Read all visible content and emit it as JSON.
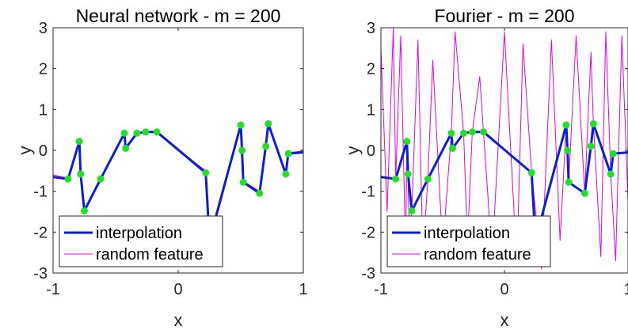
{
  "chart_data": [
    {
      "type": "line",
      "title": "Neural network - m = 200",
      "xlabel": "x",
      "ylabel": "y",
      "xlim": [
        -1,
        1
      ],
      "ylim": [
        -3,
        3
      ],
      "xticks": [
        "-1",
        "0",
        "1"
      ],
      "yticks": [
        "-3",
        "-2",
        "-1",
        "0",
        "1",
        "2",
        "3"
      ],
      "grid": false,
      "legend_position": "bottom-left",
      "series": [
        {
          "name": "interpolation",
          "color": "#0a1fd1",
          "x": [
            -1.0,
            -0.88,
            -0.79,
            -0.78,
            -0.75,
            -0.62,
            -0.43,
            -0.42,
            -0.33,
            -0.26,
            -0.17,
            0.22,
            0.25,
            0.5,
            0.51,
            0.52,
            0.65,
            0.7,
            0.72,
            0.86,
            0.88,
            1.0
          ],
          "y": [
            -0.65,
            -0.7,
            0.22,
            -0.58,
            -1.48,
            -0.7,
            0.42,
            0.05,
            0.42,
            0.45,
            0.45,
            -0.55,
            -2.2,
            0.62,
            0.0,
            -0.78,
            -1.05,
            0.1,
            0.65,
            -0.58,
            -0.08,
            -0.05
          ]
        },
        {
          "name": "random feature",
          "color": "#e600e6",
          "x": [
            -1.0,
            -0.88,
            -0.79,
            -0.78,
            -0.75,
            -0.62,
            -0.43,
            -0.42,
            -0.33,
            -0.26,
            -0.17,
            0.22,
            0.25,
            0.5,
            0.51,
            0.52,
            0.65,
            0.7,
            0.72,
            0.86,
            0.88,
            1.0
          ],
          "y": [
            -0.6,
            -0.68,
            0.2,
            -0.55,
            -1.45,
            -0.68,
            0.42,
            0.1,
            0.4,
            0.45,
            0.42,
            -0.5,
            -2.3,
            0.58,
            0.02,
            -0.75,
            -1.0,
            0.12,
            0.6,
            -0.55,
            -0.05,
            -0.02
          ]
        }
      ],
      "points": {
        "color": "#22e02a",
        "x": [
          -0.88,
          -0.79,
          -0.78,
          -0.75,
          -0.62,
          -0.43,
          -0.42,
          -0.33,
          -0.26,
          -0.17,
          0.22,
          0.5,
          0.51,
          0.52,
          0.65,
          0.7,
          0.72,
          0.86,
          0.88
        ],
        "y": [
          -0.7,
          0.22,
          -0.58,
          -1.48,
          -0.7,
          0.42,
          0.05,
          0.42,
          0.45,
          0.45,
          -0.55,
          0.62,
          0.0,
          -0.78,
          -1.05,
          0.1,
          0.65,
          -0.58,
          -0.08
        ]
      }
    },
    {
      "type": "line",
      "title": "Fourier - m = 200",
      "xlabel": "x",
      "ylabel": "y",
      "xlim": [
        -1,
        1
      ],
      "ylim": [
        -3,
        3
      ],
      "xticks": [
        "-1",
        "0",
        "1"
      ],
      "yticks": [
        "-3",
        "-2",
        "-1",
        "0",
        "1",
        "2",
        "3"
      ],
      "grid": false,
      "legend_position": "bottom-left",
      "series": [
        {
          "name": "interpolation",
          "color": "#0a1fd1",
          "x": [
            -1.0,
            -0.88,
            -0.79,
            -0.78,
            -0.75,
            -0.62,
            -0.43,
            -0.42,
            -0.33,
            -0.26,
            -0.17,
            0.22,
            0.25,
            0.5,
            0.51,
            0.52,
            0.65,
            0.7,
            0.72,
            0.86,
            0.88,
            1.0
          ],
          "y": [
            -0.65,
            -0.7,
            0.22,
            -0.58,
            -1.48,
            -0.7,
            0.42,
            0.05,
            0.42,
            0.45,
            0.45,
            -0.55,
            -2.2,
            0.62,
            0.0,
            -0.78,
            -1.05,
            0.1,
            0.65,
            -0.58,
            -0.08,
            -0.05
          ]
        },
        {
          "name": "random feature",
          "color": "#e600e6",
          "x": [
            -1.0,
            -0.95,
            -0.9,
            -0.88,
            -0.84,
            -0.8,
            -0.79,
            -0.77,
            -0.75,
            -0.7,
            -0.66,
            -0.62,
            -0.58,
            -0.5,
            -0.43,
            -0.4,
            -0.33,
            -0.3,
            -0.26,
            -0.2,
            -0.17,
            -0.1,
            0.0,
            0.1,
            0.15,
            0.22,
            0.3,
            0.38,
            0.45,
            0.5,
            0.52,
            0.58,
            0.65,
            0.7,
            0.72,
            0.78,
            0.82,
            0.86,
            0.9,
            0.95,
            1.0
          ],
          "y": [
            2.5,
            -1.5,
            3.0,
            -0.7,
            2.8,
            -2.5,
            0.22,
            -2.0,
            -1.48,
            2.7,
            -2.6,
            -0.7,
            2.2,
            -2.4,
            0.42,
            2.9,
            0.42,
            -2.3,
            0.45,
            1.8,
            0.45,
            -2.6,
            2.9,
            -2.8,
            2.6,
            -0.55,
            -2.9,
            2.7,
            -2.2,
            0.62,
            -0.78,
            2.8,
            -1.05,
            2.4,
            0.65,
            -2.6,
            2.9,
            -0.58,
            -2.7,
            2.8,
            -1.2
          ]
        }
      ],
      "points": {
        "color": "#22e02a",
        "x": [
          -0.88,
          -0.79,
          -0.78,
          -0.75,
          -0.62,
          -0.43,
          -0.42,
          -0.33,
          -0.26,
          -0.17,
          0.22,
          0.5,
          0.51,
          0.52,
          0.65,
          0.7,
          0.72,
          0.86,
          0.88
        ],
        "y": [
          -0.7,
          0.22,
          -0.58,
          -1.48,
          -0.7,
          0.42,
          0.05,
          0.42,
          0.45,
          0.45,
          -0.55,
          0.62,
          0.0,
          -0.78,
          -1.05,
          0.1,
          0.65,
          -0.58,
          -0.08
        ]
      }
    }
  ]
}
